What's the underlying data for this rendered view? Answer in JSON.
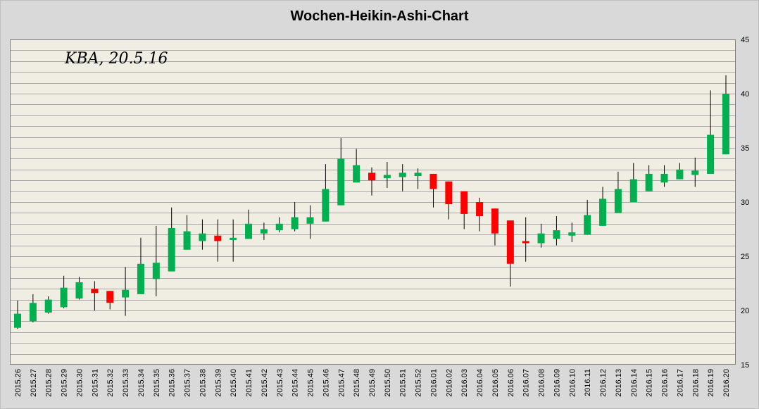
{
  "chart_data": {
    "type": "candlestick",
    "title": "Wochen-Heikin-Ashi-Chart",
    "annotation": "KBA, 20.5.16",
    "ylim": [
      15,
      45
    ],
    "yticks": [
      15,
      20,
      25,
      30,
      35,
      40,
      45
    ],
    "y_axis_side": "right",
    "grid": true,
    "legend": "none",
    "colors": {
      "plot_bg": "#f0ede2",
      "outer_bg": "#d9d9d9",
      "grid": "#a6a6a6",
      "up": "#00b050",
      "down": "#ff0000",
      "wick": "#000000"
    },
    "candles": [
      {
        "x": "2015.26",
        "open": 18.4,
        "close": 19.7,
        "high": 20.9,
        "low": 18.3
      },
      {
        "x": "2015.27",
        "open": 19.0,
        "close": 20.7,
        "high": 21.5,
        "low": 18.9
      },
      {
        "x": "2015.28",
        "open": 19.8,
        "close": 21.0,
        "high": 21.3,
        "low": 19.7
      },
      {
        "x": "2015.29",
        "open": 20.3,
        "close": 22.1,
        "high": 23.2,
        "low": 20.2
      },
      {
        "x": "2015.30",
        "open": 21.1,
        "close": 22.6,
        "high": 23.1,
        "low": 21.0
      },
      {
        "x": "2015.31",
        "open": 22.0,
        "close": 21.6,
        "high": 22.7,
        "low": 20.0
      },
      {
        "x": "2015.32",
        "open": 21.8,
        "close": 20.7,
        "high": 21.8,
        "low": 20.1
      },
      {
        "x": "2015.33",
        "open": 21.2,
        "close": 21.9,
        "high": 24.0,
        "low": 19.5
      },
      {
        "x": "2015.34",
        "open": 21.5,
        "close": 24.3,
        "high": 26.7,
        "low": 21.5
      },
      {
        "x": "2015.35",
        "open": 22.9,
        "close": 24.4,
        "high": 27.8,
        "low": 21.3
      },
      {
        "x": "2015.36",
        "open": 23.6,
        "close": 27.6,
        "high": 29.5,
        "low": 23.6
      },
      {
        "x": "2015.37",
        "open": 25.6,
        "close": 27.3,
        "high": 28.8,
        "low": 25.6
      },
      {
        "x": "2015.38",
        "open": 26.4,
        "close": 27.1,
        "high": 28.4,
        "low": 25.6
      },
      {
        "x": "2015.39",
        "open": 26.9,
        "close": 26.4,
        "high": 28.4,
        "low": 24.5
      },
      {
        "x": "2015.40",
        "open": 26.5,
        "close": 26.7,
        "high": 28.4,
        "low": 24.5
      },
      {
        "x": "2015.41",
        "open": 26.6,
        "close": 28.0,
        "high": 29.3,
        "low": 26.6
      },
      {
        "x": "2015.42",
        "open": 27.1,
        "close": 27.5,
        "high": 28.1,
        "low": 26.5
      },
      {
        "x": "2015.43",
        "open": 27.4,
        "close": 28.0,
        "high": 28.6,
        "low": 27.2
      },
      {
        "x": "2015.44",
        "open": 27.5,
        "close": 28.6,
        "high": 30.0,
        "low": 27.3
      },
      {
        "x": "2015.45",
        "open": 28.0,
        "close": 28.6,
        "high": 29.7,
        "low": 26.6
      },
      {
        "x": "2015.46",
        "open": 28.2,
        "close": 31.2,
        "high": 33.5,
        "low": 28.2
      },
      {
        "x": "2015.47",
        "open": 29.7,
        "close": 34.0,
        "high": 35.9,
        "low": 29.7
      },
      {
        "x": "2015.48",
        "open": 31.8,
        "close": 33.4,
        "high": 34.9,
        "low": 31.8
      },
      {
        "x": "2015.49",
        "open": 32.7,
        "close": 32.0,
        "high": 33.2,
        "low": 30.6
      },
      {
        "x": "2015.50",
        "open": 32.2,
        "close": 32.5,
        "high": 33.7,
        "low": 31.3
      },
      {
        "x": "2015.51",
        "open": 32.3,
        "close": 32.7,
        "high": 33.5,
        "low": 31.0
      },
      {
        "x": "2015.52",
        "open": 32.4,
        "close": 32.7,
        "high": 33.1,
        "low": 31.2
      },
      {
        "x": "2016.01",
        "open": 32.6,
        "close": 31.2,
        "high": 32.6,
        "low": 29.5
      },
      {
        "x": "2016.02",
        "open": 31.9,
        "close": 29.8,
        "high": 31.9,
        "low": 28.4
      },
      {
        "x": "2016.03",
        "open": 31.0,
        "close": 28.9,
        "high": 31.0,
        "low": 27.5
      },
      {
        "x": "2016.04",
        "open": 30.0,
        "close": 28.7,
        "high": 30.4,
        "low": 27.3
      },
      {
        "x": "2016.05",
        "open": 29.4,
        "close": 27.1,
        "high": 29.4,
        "low": 26.0
      },
      {
        "x": "2016.06",
        "open": 28.3,
        "close": 24.3,
        "high": 28.3,
        "low": 22.2
      },
      {
        "x": "2016.07",
        "open": 26.4,
        "close": 26.2,
        "high": 28.6,
        "low": 24.5
      },
      {
        "x": "2016.08",
        "open": 26.2,
        "close": 27.1,
        "high": 28.0,
        "low": 25.8
      },
      {
        "x": "2016.09",
        "open": 26.6,
        "close": 27.4,
        "high": 28.7,
        "low": 26.0
      },
      {
        "x": "2016.10",
        "open": 26.9,
        "close": 27.2,
        "high": 28.1,
        "low": 26.3
      },
      {
        "x": "2016.11",
        "open": 27.0,
        "close": 28.8,
        "high": 30.2,
        "low": 27.0
      },
      {
        "x": "2016.12",
        "open": 27.8,
        "close": 30.3,
        "high": 31.4,
        "low": 27.8
      },
      {
        "x": "2016.13",
        "open": 29.0,
        "close": 31.2,
        "high": 32.8,
        "low": 29.0
      },
      {
        "x": "2016.14",
        "open": 30.0,
        "close": 32.1,
        "high": 33.6,
        "low": 30.0
      },
      {
        "x": "2016.15",
        "open": 31.0,
        "close": 32.6,
        "high": 33.4,
        "low": 31.0
      },
      {
        "x": "2016.16",
        "open": 31.8,
        "close": 32.6,
        "high": 33.4,
        "low": 31.4
      },
      {
        "x": "2016.17",
        "open": 32.1,
        "close": 33.0,
        "high": 33.6,
        "low": 32.1
      },
      {
        "x": "2016.18",
        "open": 32.5,
        "close": 32.9,
        "high": 34.1,
        "low": 31.4
      },
      {
        "x": "2016.19",
        "open": 32.6,
        "close": 36.2,
        "high": 40.3,
        "low": 32.6
      },
      {
        "x": "2016.20",
        "open": 34.4,
        "close": 40.0,
        "high": 41.7,
        "low": 34.4
      }
    ]
  }
}
